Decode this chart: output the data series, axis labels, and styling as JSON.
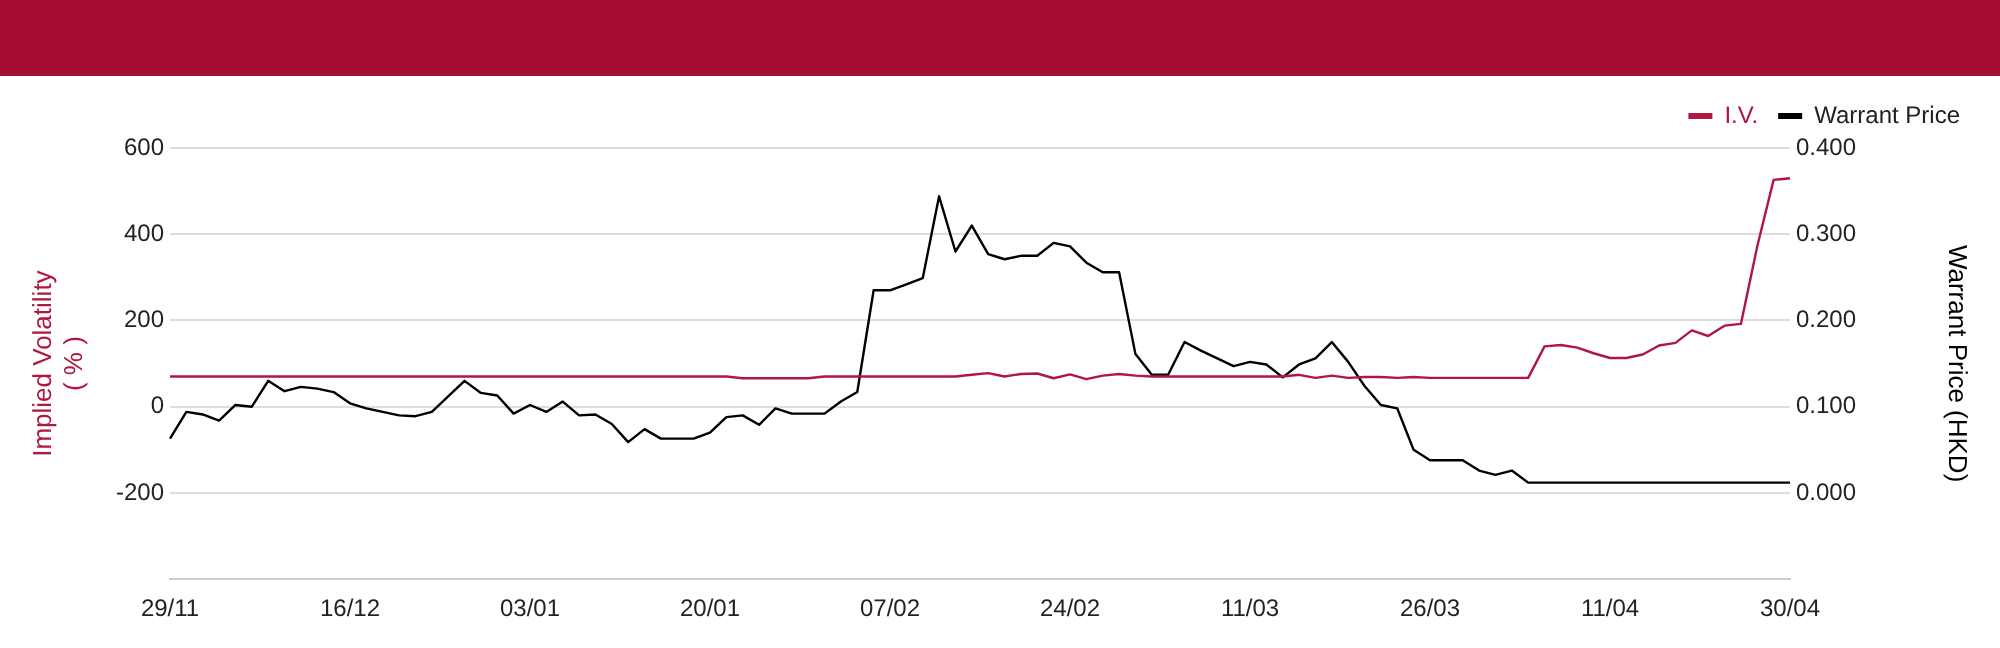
{
  "chart_data": {
    "type": "line",
    "ylabel": "Implied Volatility\n( % )",
    "y2label": "Warrant Price (HKD)",
    "categories": [
      "29/11",
      null,
      null,
      null,
      null,
      null,
      null,
      null,
      null,
      null,
      null,
      "16/12",
      null,
      null,
      null,
      null,
      null,
      null,
      null,
      null,
      null,
      null,
      "03/01",
      null,
      null,
      null,
      null,
      null,
      null,
      null,
      null,
      null,
      null,
      "20/01",
      null,
      null,
      null,
      null,
      null,
      null,
      null,
      null,
      null,
      null,
      "07/02",
      null,
      null,
      null,
      null,
      null,
      null,
      null,
      null,
      null,
      null,
      "24/02",
      null,
      null,
      null,
      null,
      null,
      null,
      null,
      null,
      null,
      null,
      "11/03",
      null,
      null,
      null,
      null,
      null,
      null,
      null,
      null,
      null,
      null,
      "26/03",
      null,
      null,
      null,
      null,
      null,
      null,
      null,
      null,
      null,
      null,
      "11/04",
      null,
      null,
      null,
      null,
      null,
      null,
      null,
      null,
      null,
      null,
      "30/04"
    ],
    "series": [
      {
        "name": "I.V.",
        "color": "#b0173f",
        "values": [
          70,
          70,
          70,
          70,
          70,
          70,
          70,
          70,
          70,
          70,
          70,
          70,
          70,
          70,
          70,
          70,
          70,
          70,
          70,
          70,
          70,
          70,
          70,
          70,
          70,
          70,
          70,
          70,
          70,
          70,
          70,
          70,
          70,
          70,
          70,
          66,
          66,
          66,
          66,
          66,
          70,
          70,
          70,
          70,
          70,
          70,
          70,
          70,
          70,
          74,
          78,
          70,
          76,
          77,
          66,
          75,
          64,
          72,
          76,
          72,
          70,
          70,
          70,
          70,
          70,
          70,
          70,
          70,
          70,
          74,
          67,
          72,
          67,
          69,
          69,
          67,
          69,
          67,
          67,
          67,
          67,
          67,
          67,
          67,
          140,
          143,
          137,
          124,
          113,
          113,
          121,
          142,
          148,
          177,
          164,
          188,
          192,
          372,
          526,
          530
        ]
      },
      {
        "name": "Warrant Price",
        "color": "#000000",
        "axis": "y2",
        "values": [
          0.063,
          0.094,
          0.091,
          0.084,
          0.102,
          0.1,
          0.13,
          0.118,
          0.123,
          0.121,
          0.117,
          0.104,
          0.098,
          0.094,
          0.09,
          0.089,
          0.094,
          0.112,
          0.13,
          0.116,
          0.113,
          0.092,
          0.102,
          0.094,
          0.106,
          0.09,
          0.091,
          0.08,
          0.059,
          0.074,
          0.063,
          0.063,
          0.063,
          0.07,
          0.088,
          0.09,
          0.079,
          0.098,
          0.092,
          0.092,
          0.092,
          0.106,
          0.117,
          0.235,
          0.235,
          0.242,
          0.249,
          0.344,
          0.28,
          0.31,
          0.277,
          0.271,
          0.275,
          0.275,
          0.29,
          0.286,
          0.267,
          0.256,
          0.256,
          0.161,
          0.137,
          0.137,
          0.175,
          0.165,
          0.156,
          0.147,
          0.152,
          0.149,
          0.134,
          0.149,
          0.156,
          0.175,
          0.152,
          0.124,
          0.102,
          0.098,
          0.05,
          0.038,
          0.038,
          0.038,
          0.026,
          0.021,
          0.026,
          0.012,
          0.012,
          0.012,
          0.012,
          0.012,
          0.012,
          0.012,
          0.012,
          0.012,
          0.012,
          0.012,
          0.012,
          0.012,
          0.012,
          0.012,
          0.012,
          0.012
        ]
      }
    ],
    "ylim": [
      -400,
      600
    ],
    "yticks": [
      {
        "value": -400,
        "label": null
      },
      -200,
      0,
      200,
      400,
      600
    ],
    "y2lim": [
      -0.1,
      0.4
    ],
    "y2ticks": [
      {
        "value": -0.1,
        "label": null
      },
      {
        "value": 0,
        "label": "0.000"
      },
      {
        "value": 0.1,
        "label": "0.100"
      },
      {
        "value": 0.2,
        "label": "0.200"
      },
      {
        "value": 0.3,
        "label": "0.300"
      },
      {
        "value": 0.4,
        "label": "0.400"
      }
    ],
    "grid": "y",
    "legend": "top right",
    "marker": "none",
    "line_style": "solid"
  }
}
